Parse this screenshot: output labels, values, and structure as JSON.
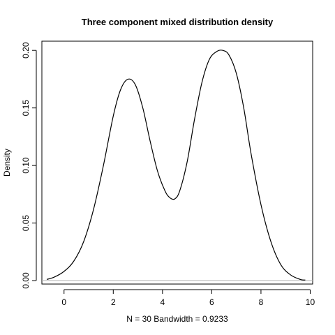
{
  "chart_data": {
    "type": "line",
    "title": "Three component mixed distribution density",
    "xlabel": "N = 30   Bandwidth = 0.9233",
    "ylabel": "Density",
    "xlim": [
      -0.9,
      10.1
    ],
    "ylim": [
      -0.003,
      0.208
    ],
    "x_ticks": [
      "0",
      "2",
      "4",
      "6",
      "8",
      "10"
    ],
    "y_ticks": [
      "0.00",
      "0.05",
      "0.10",
      "0.15",
      "0.20"
    ],
    "zero_line": true,
    "grid": false,
    "series": [
      {
        "x": [
          -0.7,
          -0.4,
          0.0,
          0.4,
          0.8,
          1.2,
          1.6,
          2.0,
          2.3,
          2.6,
          2.9,
          3.2,
          3.5,
          3.8,
          4.1,
          4.3,
          4.5,
          4.7,
          5.0,
          5.3,
          5.6,
          5.9,
          6.2,
          6.45,
          6.7,
          7.0,
          7.3,
          7.6,
          8.0,
          8.4,
          8.8,
          9.2,
          9.6,
          9.8
        ],
        "y": [
          0.001,
          0.003,
          0.008,
          0.017,
          0.034,
          0.062,
          0.1,
          0.143,
          0.166,
          0.175,
          0.17,
          0.15,
          0.121,
          0.095,
          0.078,
          0.072,
          0.071,
          0.078,
          0.103,
          0.14,
          0.172,
          0.192,
          0.199,
          0.2,
          0.196,
          0.18,
          0.15,
          0.11,
          0.066,
          0.034,
          0.014,
          0.005,
          0.001,
          0.0005
        ]
      }
    ]
  }
}
